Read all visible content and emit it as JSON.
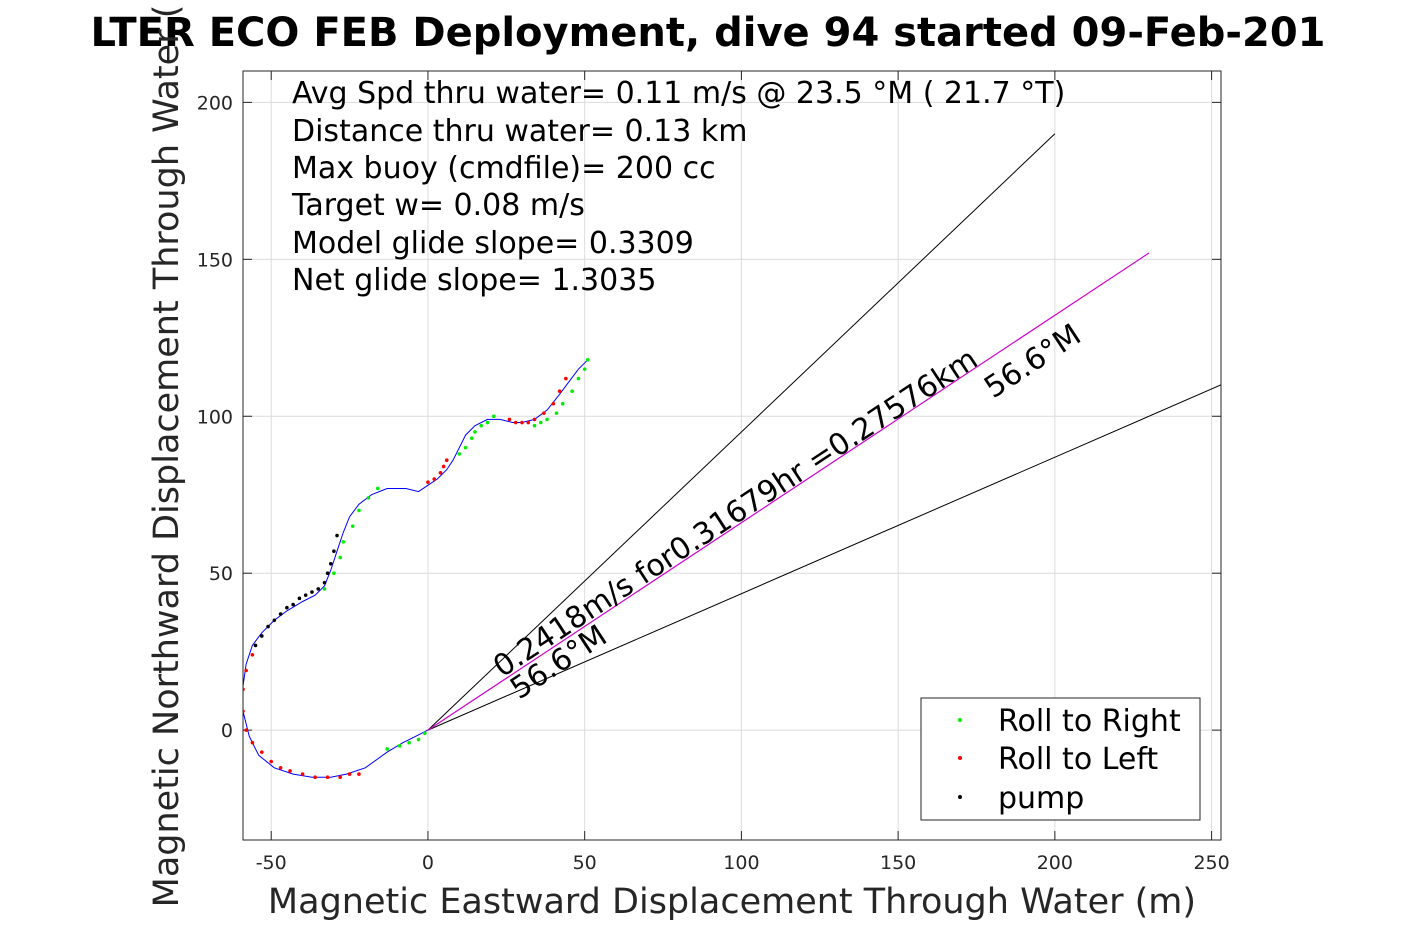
{
  "chart_data": {
    "type": "scatter",
    "title": "LTER ECO FEB Deployment, dive 94 started 09-Feb-201",
    "xlabel": "Magnetic Eastward Displacement Through Water (m)",
    "ylabel": "Magnetic Northward Displacement Through Water (",
    "xlim": [
      -59,
      253
    ],
    "ylim": [
      -35,
      210
    ],
    "xticks": [
      -50,
      0,
      50,
      100,
      150,
      200,
      250
    ],
    "yticks": [
      0,
      50,
      100,
      150,
      200
    ],
    "grid": true,
    "legend_position": "bottom-right",
    "info_lines": [
      "Avg Spd thru water=  0.11 m/s @  23.5 °M ( 21.7 °T)",
      "Distance thru water=  0.13 km",
      "Max buoy (cmdfile)= 200 cc",
      "Target w= 0.08 m/s",
      "Model glide slope= 0.3309",
      "Net glide slope= 1.3035"
    ],
    "annotations": {
      "drift_text": "0.2418m/s for0.31679hr =0.27576km",
      "heading_upper": "56.6°M",
      "heading_lower": "56.6°M"
    },
    "series": [
      {
        "name": "Roll to Right",
        "marker": "dot",
        "color": "#00ee00",
        "x": [
          -13,
          -9,
          -6,
          -3,
          -1,
          34,
          36,
          38,
          41,
          43,
          46,
          48,
          50,
          51,
          10,
          12,
          14,
          15,
          17,
          19,
          21,
          -33,
          -30,
          -28,
          -27,
          -24,
          -22,
          -19,
          -16
        ],
        "y": [
          -6,
          -5,
          -4,
          -3,
          -1,
          97,
          98,
          99,
          101,
          104,
          108,
          112,
          115,
          118,
          88,
          90,
          93,
          95,
          97,
          98,
          100,
          45,
          50,
          55,
          60,
          65,
          70,
          74,
          77
        ]
      },
      {
        "name": "Roll to Left",
        "marker": "dot",
        "color": "#ff0000",
        "x": [
          -56,
          -58,
          -59,
          -59,
          -58,
          -56,
          -53,
          -50,
          -47,
          -44,
          -40,
          -36,
          -32,
          -28,
          -25,
          -22,
          0,
          2,
          4,
          5,
          6,
          26,
          28,
          30,
          32,
          34,
          37,
          40,
          42,
          44
        ],
        "y": [
          24,
          19,
          13,
          6,
          0,
          -4,
          -7,
          -10,
          -12,
          -13,
          -14,
          -15,
          -15,
          -15,
          -14,
          -14,
          79,
          80,
          82,
          84,
          86,
          99,
          98,
          98,
          98,
          99,
          101,
          104,
          108,
          112
        ]
      },
      {
        "name": "pump",
        "marker": "dot",
        "color": "#000000",
        "x": [
          -55,
          -53,
          -51,
          -49,
          -47,
          -45,
          -43,
          -41,
          -39,
          -37,
          -35,
          -33,
          -32,
          -31,
          -30,
          -29
        ],
        "y": [
          27,
          30,
          33,
          35,
          37,
          39,
          40,
          42,
          43,
          44,
          45,
          47,
          50,
          53,
          57,
          62
        ]
      }
    ],
    "track_line": {
      "color": "#0000ff",
      "x": [
        0,
        -4,
        -8,
        -13,
        -20,
        -26,
        -31,
        -37,
        -43,
        -49,
        -54,
        -57,
        -59,
        -59,
        -58,
        -56,
        -53,
        -49,
        -45,
        -40,
        -36,
        -33,
        -31,
        -29,
        -27,
        -25,
        -22,
        -18,
        -13,
        -7,
        -3,
        0,
        3,
        6,
        8,
        10,
        12,
        15,
        19,
        23,
        27,
        30,
        34,
        38,
        42,
        45,
        48,
        51
      ],
      "y": [
        0,
        -2,
        -4,
        -7,
        -12,
        -14,
        -15,
        -15,
        -14,
        -12,
        -8,
        -2,
        6,
        14,
        21,
        27,
        31,
        35,
        38,
        41,
        43,
        46,
        51,
        57,
        63,
        68,
        72,
        75,
        77,
        77,
        76,
        78,
        80,
        83,
        86,
        90,
        94,
        97,
        99,
        99,
        98,
        98,
        99,
        102,
        107,
        111,
        115,
        118
      ]
    },
    "rays": {
      "color": "#000000",
      "lines": [
        {
          "x": [
            0,
            200
          ],
          "y": [
            0,
            190
          ]
        },
        {
          "x": [
            0,
            253
          ],
          "y": [
            0,
            110
          ]
        }
      ]
    },
    "drift_line": {
      "color": "#d000d0",
      "x": [
        0,
        230
      ],
      "y": [
        0,
        152
      ]
    }
  }
}
